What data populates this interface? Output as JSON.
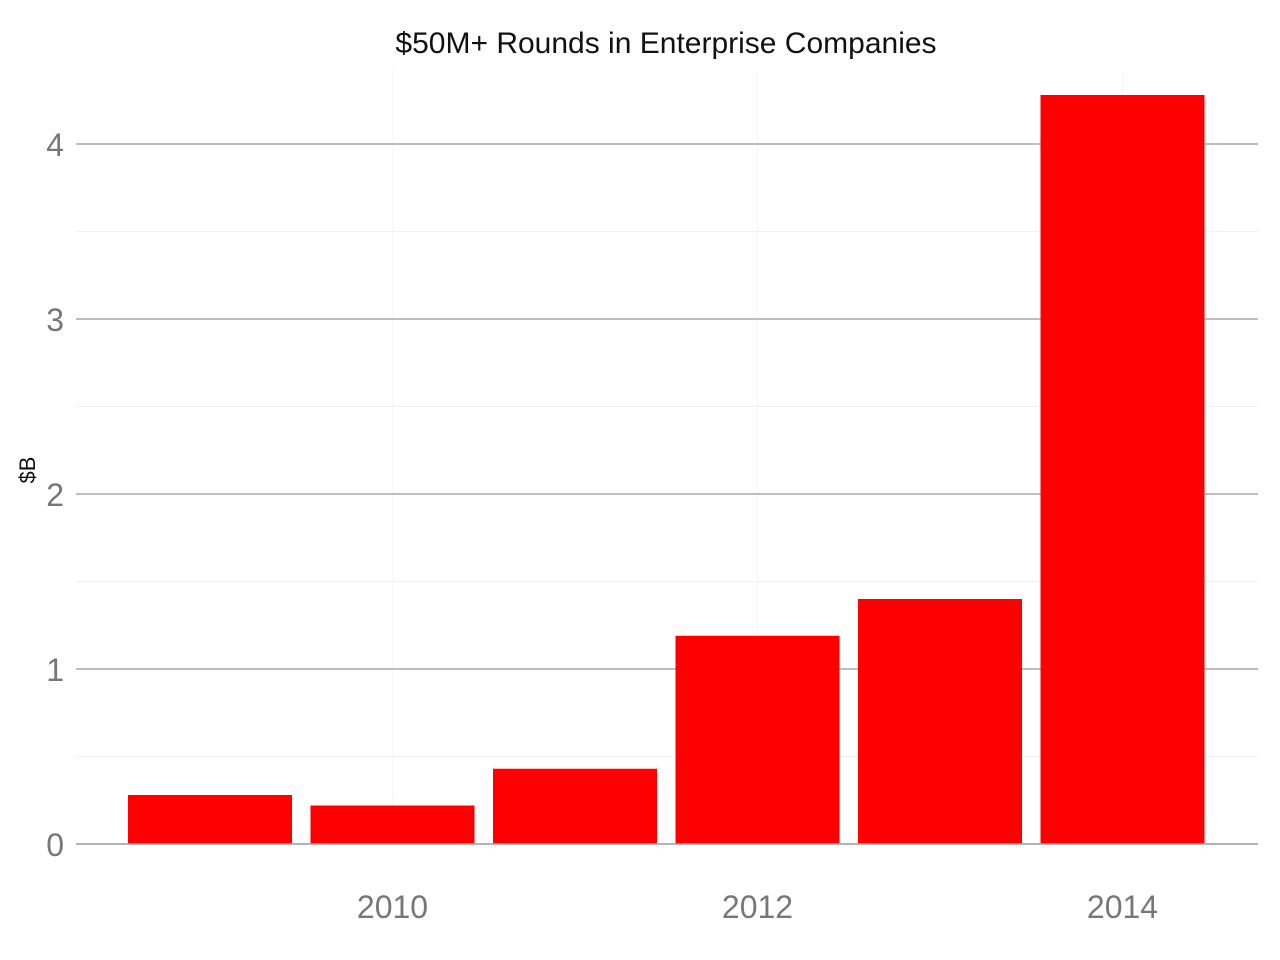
{
  "chart_data": {
    "type": "bar",
    "title": "$50M+ Rounds in Enterprise Companies",
    "xlabel": "",
    "ylabel": "$B",
    "x": [
      2009,
      2010,
      2011,
      2012,
      2013,
      2014
    ],
    "values": [
      0.28,
      0.22,
      0.43,
      1.19,
      1.4,
      4.28
    ],
    "x_ticks": [
      "2010",
      "2012",
      "2014"
    ],
    "x_tick_values": [
      2010,
      2012,
      2014
    ],
    "y_ticks": [
      0,
      1,
      2,
      3,
      4
    ],
    "ylim": [
      0,
      4.3
    ],
    "xlim": [
      2008.4,
      2014.7
    ],
    "grid": true,
    "legend": "none",
    "bar_color": "#fe0000"
  }
}
